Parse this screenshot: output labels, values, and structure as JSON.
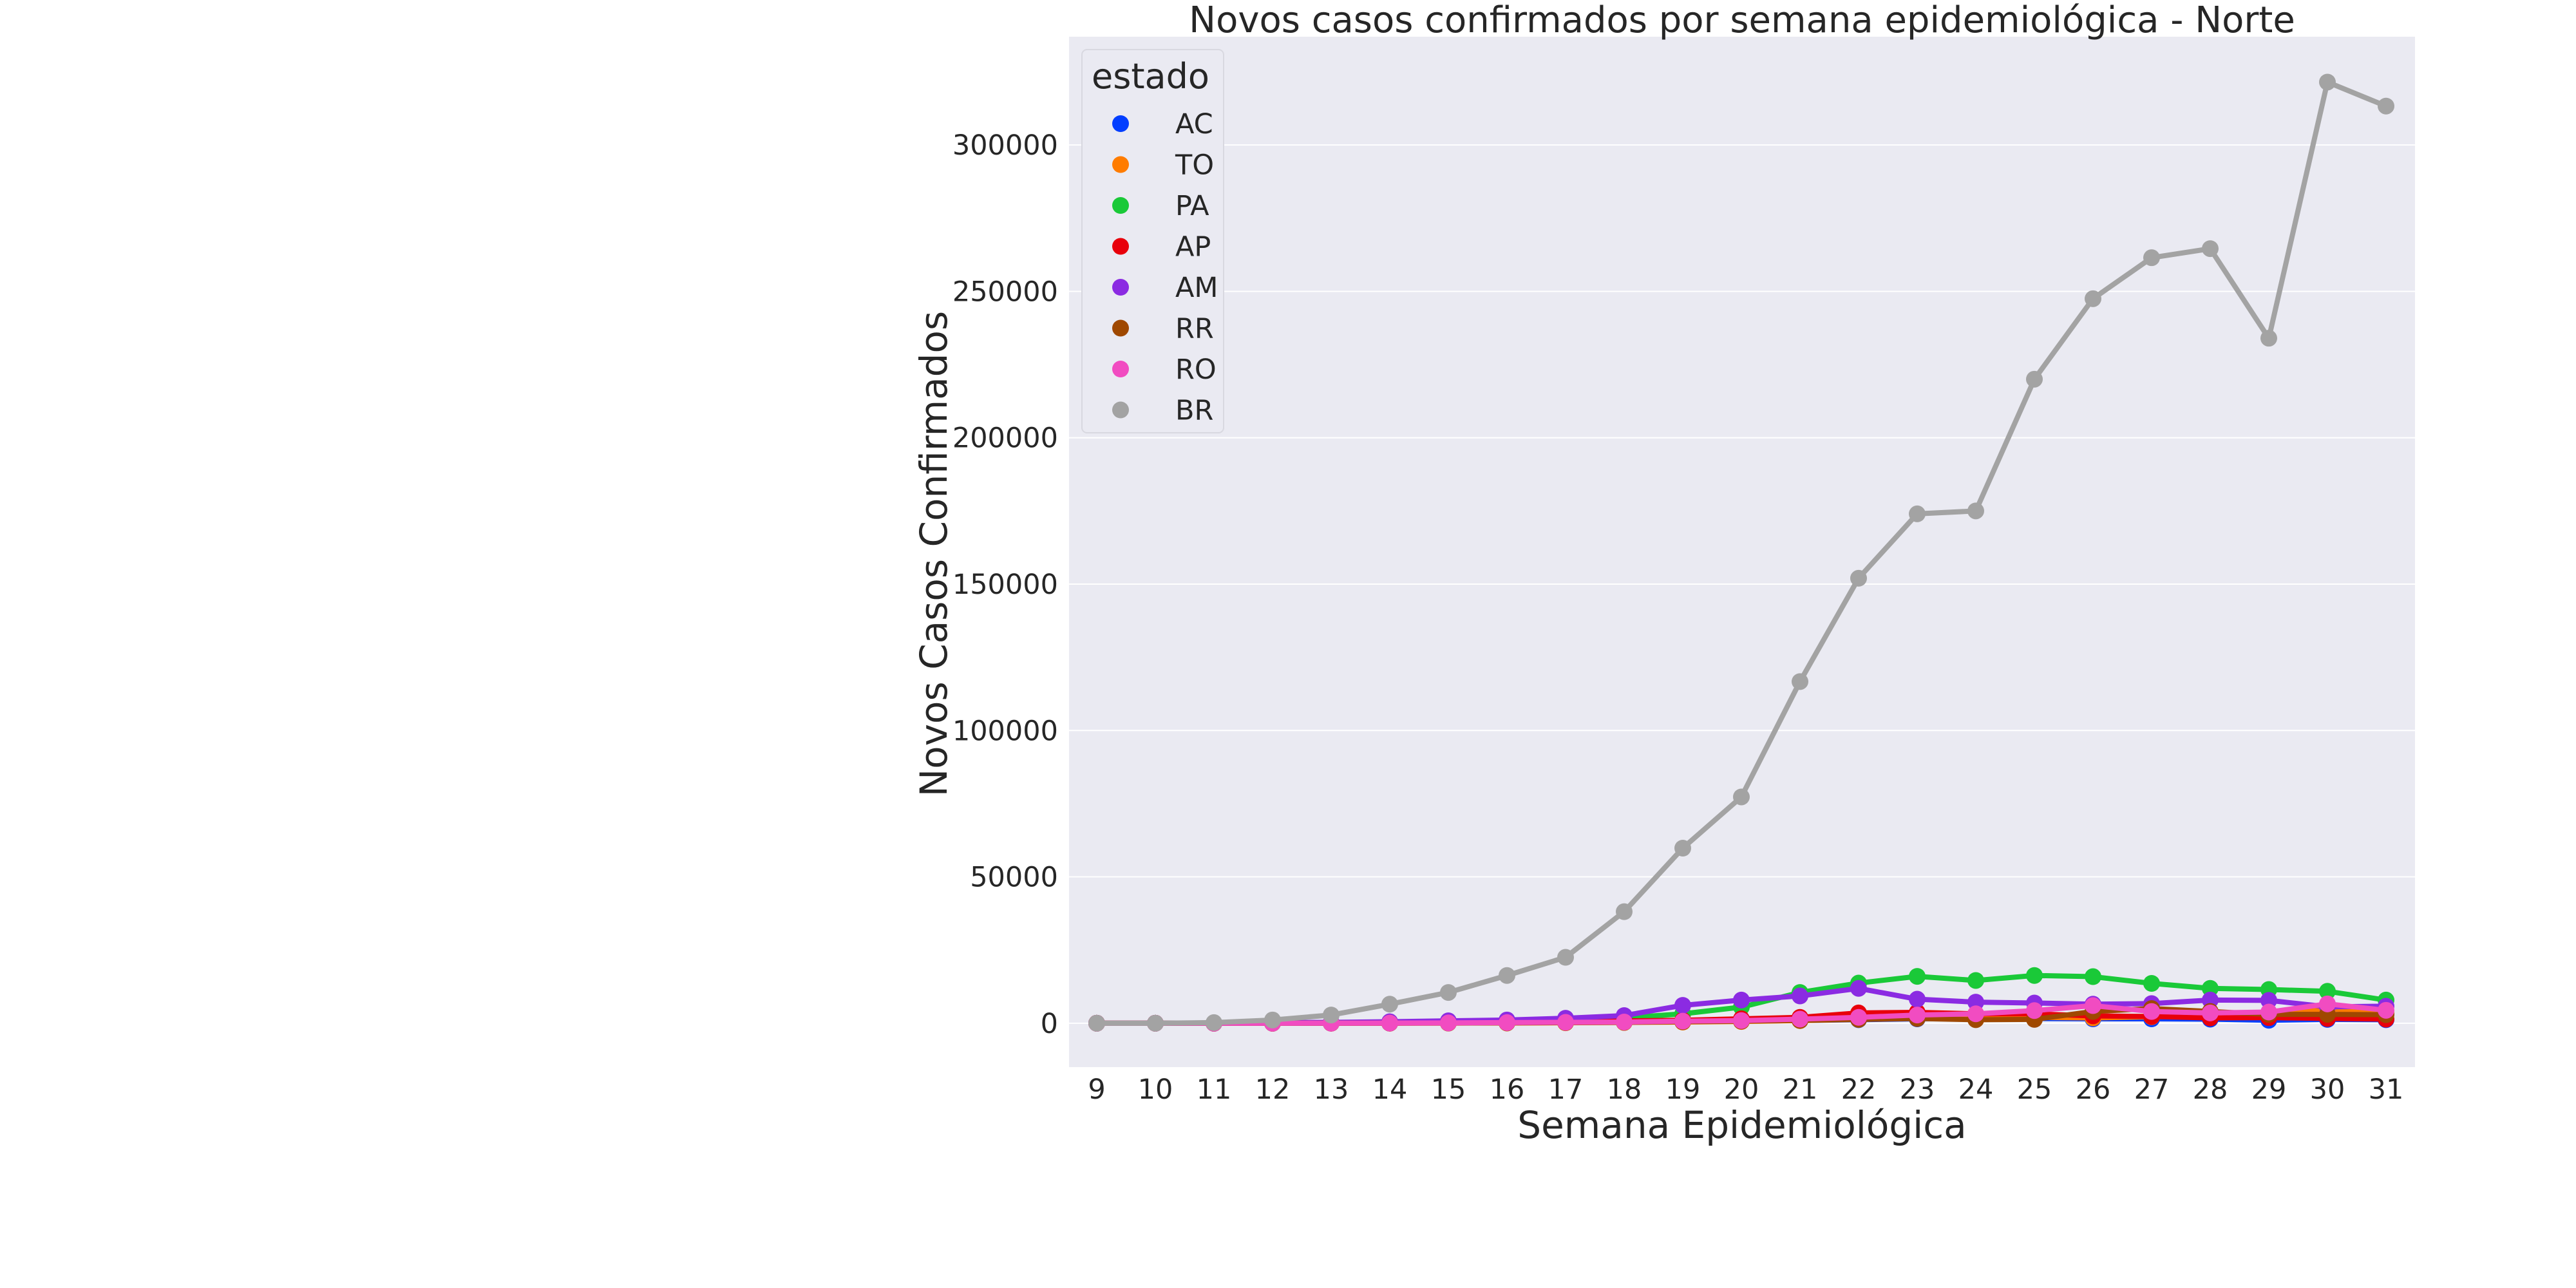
{
  "chart_data": {
    "type": "line",
    "title": "Novos casos confirmados por semana epidemiológica - Norte",
    "xlabel": "Semana Epidemiológica",
    "ylabel": "Novos Casos Confirmados",
    "categories": [
      "9",
      "10",
      "11",
      "12",
      "13",
      "14",
      "15",
      "16",
      "17",
      "18",
      "19",
      "20",
      "21",
      "22",
      "23",
      "24",
      "25",
      "26",
      "27",
      "28",
      "29",
      "30",
      "31"
    ],
    "ylim": [
      -15000,
      337000
    ],
    "yticks": [
      0,
      50000,
      100000,
      150000,
      200000,
      250000,
      300000
    ],
    "grid": true,
    "background": "#eaeaf2",
    "legend": {
      "title": "estado",
      "placement": "top-left"
    },
    "series": [
      {
        "name": "AC",
        "color": "#023eff",
        "values": [
          0,
          0,
          0,
          0,
          10,
          30,
          80,
          150,
          250,
          400,
          600,
          700,
          900,
          1200,
          1500,
          1800,
          1600,
          1500,
          1500,
          1400,
          1000,
          1300,
          1200
        ]
      },
      {
        "name": "TO",
        "color": "#ff7c00",
        "values": [
          0,
          0,
          0,
          0,
          10,
          20,
          40,
          80,
          150,
          250,
          400,
          600,
          900,
          1300,
          1700,
          1900,
          2000,
          1800,
          2200,
          2500,
          2800,
          5000,
          3500
        ]
      },
      {
        "name": "PA",
        "color": "#1ac938",
        "values": [
          0,
          0,
          0,
          0,
          50,
          150,
          350,
          700,
          1100,
          1800,
          3200,
          5500,
          10500,
          13700,
          16000,
          14600,
          16300,
          15900,
          13600,
          11900,
          11500,
          10900,
          7900
        ]
      },
      {
        "name": "AP",
        "color": "#e8000b",
        "values": [
          0,
          0,
          0,
          0,
          10,
          50,
          150,
          300,
          500,
          800,
          1000,
          1500,
          2000,
          3500,
          3700,
          3200,
          3200,
          2500,
          2300,
          1800,
          1900,
          1600,
          1400
        ]
      },
      {
        "name": "AM",
        "color": "#8b2be2",
        "values": [
          0,
          0,
          0,
          200,
          300,
          500,
          800,
          1100,
          1700,
          2600,
          6100,
          7900,
          9300,
          11900,
          8200,
          7200,
          6900,
          6500,
          6700,
          7900,
          7800,
          5600,
          5800
        ]
      },
      {
        "name": "RR",
        "color": "#9f4800",
        "values": [
          0,
          0,
          0,
          0,
          10,
          20,
          50,
          100,
          200,
          300,
          500,
          700,
          1000,
          1300,
          1600,
          1200,
          1300,
          4000,
          5000,
          4000,
          3000,
          3000,
          2900
        ]
      },
      {
        "name": "RO",
        "color": "#f14cc1",
        "values": [
          0,
          0,
          0,
          0,
          20,
          50,
          100,
          200,
          300,
          400,
          700,
          900,
          1400,
          2000,
          2800,
          3200,
          4300,
          6000,
          4000,
          3500,
          3800,
          6600,
          4400
        ]
      },
      {
        "name": "BR",
        "color": "#a3a3a3",
        "values": [
          0,
          0,
          200,
          1100,
          2800,
          6500,
          10500,
          16300,
          22500,
          38100,
          59800,
          77300,
          116700,
          152000,
          174000,
          175000,
          220000,
          247500,
          261500,
          264600,
          234000,
          321500,
          313300
        ]
      }
    ]
  }
}
